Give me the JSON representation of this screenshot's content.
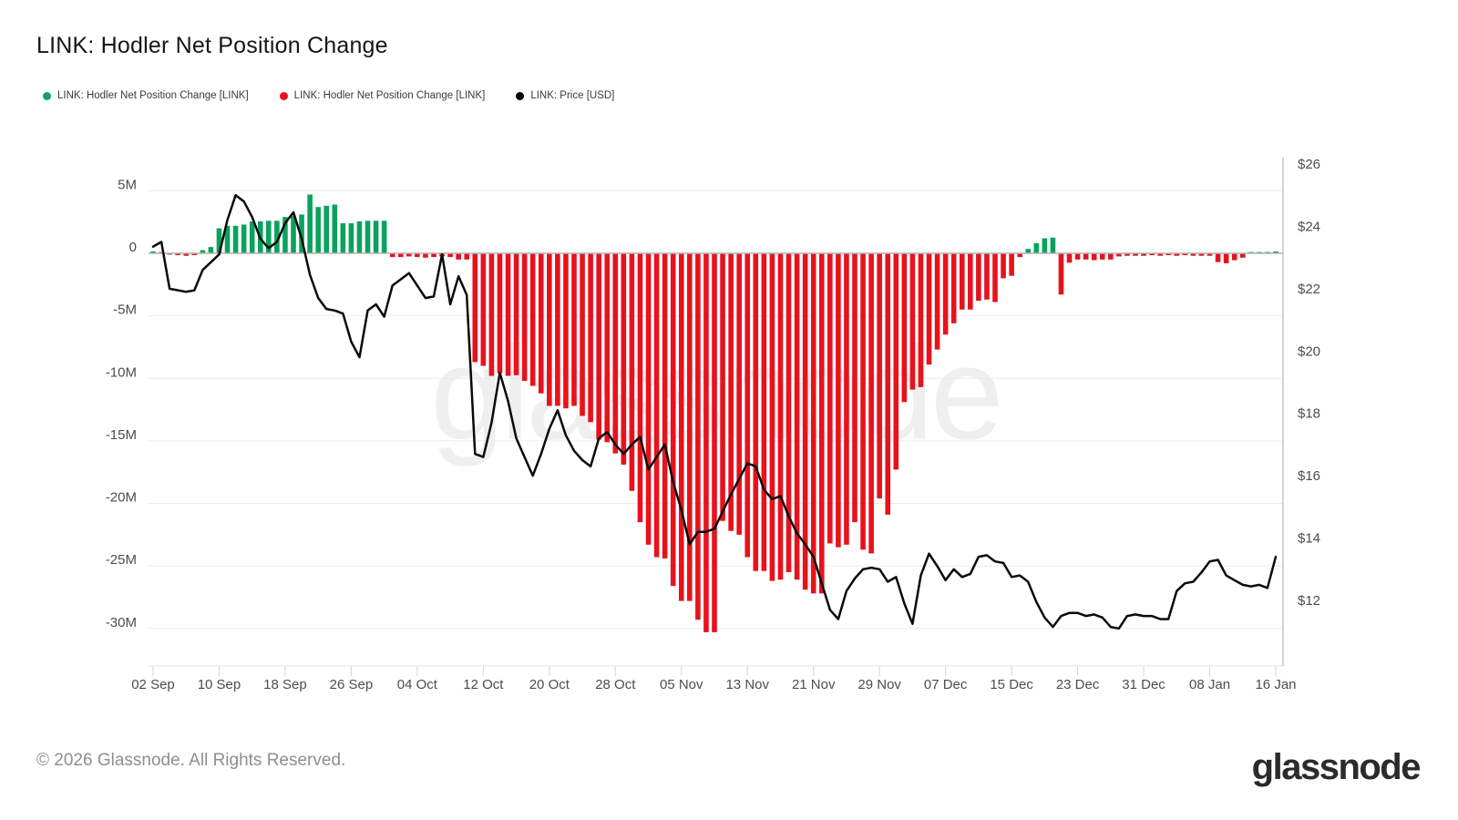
{
  "header": {
    "title": "LINK: Hodler Net Position Change"
  },
  "legend": {
    "items": [
      {
        "label": "LINK: Hodler Net Position Change [LINK]",
        "color": "#0ba360"
      },
      {
        "label": "LINK: Hodler Net Position Change [LINK]",
        "color": "#e8121d"
      },
      {
        "label": "LINK: Price [USD]",
        "color": "#000000"
      }
    ]
  },
  "watermark": "glassnode",
  "footer": {
    "copyright": "© 2026 Glassnode. All Rights Reserved.",
    "brand": "glassnode"
  },
  "chart_data": {
    "type": "bar+line",
    "title": "LINK: Hodler Net Position Change",
    "x_axis": {
      "tick_labels": [
        "02 Sep",
        "10 Sep",
        "18 Sep",
        "26 Sep",
        "04 Oct",
        "12 Oct",
        "20 Oct",
        "28 Oct",
        "05 Nov",
        "13 Nov",
        "21 Nov",
        "29 Nov",
        "07 Dec",
        "15 Dec",
        "23 Dec",
        "31 Dec",
        "08 Jan",
        "16 Jan"
      ],
      "days_between_ticks": 8
    },
    "left_axis": {
      "unit": "LINK (millions)",
      "tick_labels": [
        "5M",
        "0",
        "-5M",
        "-10M",
        "-15M",
        "-20M",
        "-25M",
        "-30M"
      ],
      "tick_values": [
        5,
        0,
        -5,
        -10,
        -15,
        -20,
        -25,
        -30
      ],
      "range": [
        -32.5,
        7.7
      ]
    },
    "right_axis": {
      "unit": "USD",
      "tick_labels": [
        "$26",
        "$24",
        "$22",
        "$20",
        "$18",
        "$16",
        "$14",
        "$12"
      ],
      "tick_values": [
        26,
        24,
        22,
        20,
        18,
        16,
        14,
        12
      ],
      "range": [
        10.45,
        26.2
      ]
    },
    "grid": "horizontal",
    "legend_position": "top-left",
    "series": [
      {
        "name": "LINK: Hodler Net Position Change [LINK]",
        "type": "bar",
        "unit": "millions of LINK",
        "color_positive": "#0aa25e",
        "color_negative": "#e8121c",
        "values": [
          0.15,
          0.1,
          -0.1,
          -0.15,
          -0.2,
          -0.15,
          0.25,
          0.5,
          2.0,
          2.2,
          2.2,
          2.3,
          2.55,
          2.55,
          2.6,
          2.6,
          2.9,
          3.0,
          3.1,
          4.7,
          3.7,
          3.8,
          3.9,
          2.4,
          2.4,
          2.55,
          2.6,
          2.6,
          2.6,
          -0.3,
          -0.3,
          -0.25,
          -0.3,
          -0.35,
          -0.3,
          -0.25,
          -0.3,
          -0.5,
          -0.5,
          -8.7,
          -9.0,
          -9.8,
          -9.6,
          -9.8,
          -9.75,
          -10.2,
          -10.6,
          -11.2,
          -12.2,
          -12.2,
          -12.4,
          -12.2,
          -13.0,
          -13.5,
          -14.9,
          -15.1,
          -16.0,
          -16.9,
          -19.0,
          -21.5,
          -23.3,
          -24.3,
          -24.4,
          -26.6,
          -27.8,
          -27.8,
          -29.3,
          -30.3,
          -30.3,
          -21.4,
          -22.2,
          -22.5,
          -24.3,
          -25.4,
          -25.4,
          -26.2,
          -26.1,
          -25.5,
          -26.1,
          -26.9,
          -27.2,
          -27.2,
          -23.2,
          -23.5,
          -23.3,
          -21.5,
          -23.7,
          -24.0,
          -19.6,
          -20.9,
          -17.3,
          -11.9,
          -10.9,
          -10.7,
          -8.9,
          -7.7,
          -6.5,
          -5.6,
          -4.5,
          -4.5,
          -3.8,
          -3.7,
          -3.9,
          -2.0,
          -1.8,
          -0.3,
          0.35,
          0.8,
          1.2,
          1.25,
          -3.3,
          -0.75,
          -0.5,
          -0.5,
          -0.55,
          -0.5,
          -0.5,
          -0.25,
          -0.2,
          -0.2,
          -0.2,
          -0.15,
          -0.2,
          -0.15,
          -0.2,
          -0.15,
          -0.2,
          -0.2,
          -0.2,
          -0.7,
          -0.8,
          -0.55,
          -0.35,
          0.1,
          0.1,
          0.05,
          0.15
        ]
      },
      {
        "name": "LINK: Price [USD]",
        "type": "line",
        "unit": "USD",
        "color": "#0a0a0a",
        "values": [
          23.35,
          23.5,
          22.0,
          21.95,
          21.9,
          21.95,
          22.6,
          22.85,
          23.1,
          24.2,
          25.0,
          24.8,
          24.3,
          23.6,
          23.3,
          23.5,
          24.1,
          24.45,
          23.6,
          22.45,
          21.7,
          21.35,
          21.3,
          21.2,
          20.3,
          19.8,
          21.3,
          21.5,
          21.1,
          22.1,
          22.3,
          22.5,
          22.1,
          21.7,
          21.75,
          23.1,
          21.5,
          22.4,
          21.8,
          16.7,
          16.6,
          17.7,
          19.3,
          18.4,
          17.2,
          16.6,
          16.0,
          16.7,
          17.5,
          18.1,
          17.3,
          16.8,
          16.5,
          16.3,
          17.2,
          17.4,
          17.0,
          16.7,
          17.0,
          17.25,
          16.2,
          16.6,
          17.0,
          15.8,
          14.9,
          13.8,
          14.2,
          14.2,
          14.3,
          14.85,
          15.4,
          15.9,
          16.4,
          16.3,
          15.55,
          15.25,
          15.35,
          14.7,
          14.15,
          13.8,
          13.4,
          12.55,
          11.7,
          11.4,
          12.3,
          12.7,
          13.0,
          13.05,
          13.0,
          12.6,
          12.75,
          11.9,
          11.25,
          12.8,
          13.5,
          13.1,
          12.65,
          13.0,
          12.75,
          12.85,
          13.4,
          13.45,
          13.25,
          13.2,
          12.75,
          12.8,
          12.6,
          11.95,
          11.45,
          11.15,
          11.5,
          11.6,
          11.6,
          11.5,
          11.55,
          11.45,
          11.15,
          11.1,
          11.5,
          11.55,
          11.5,
          11.5,
          11.4,
          11.4,
          12.3,
          12.55,
          12.6,
          12.9,
          13.25,
          13.3,
          12.8,
          12.65,
          12.5,
          12.45,
          12.5,
          12.4,
          13.4
        ]
      }
    ]
  }
}
